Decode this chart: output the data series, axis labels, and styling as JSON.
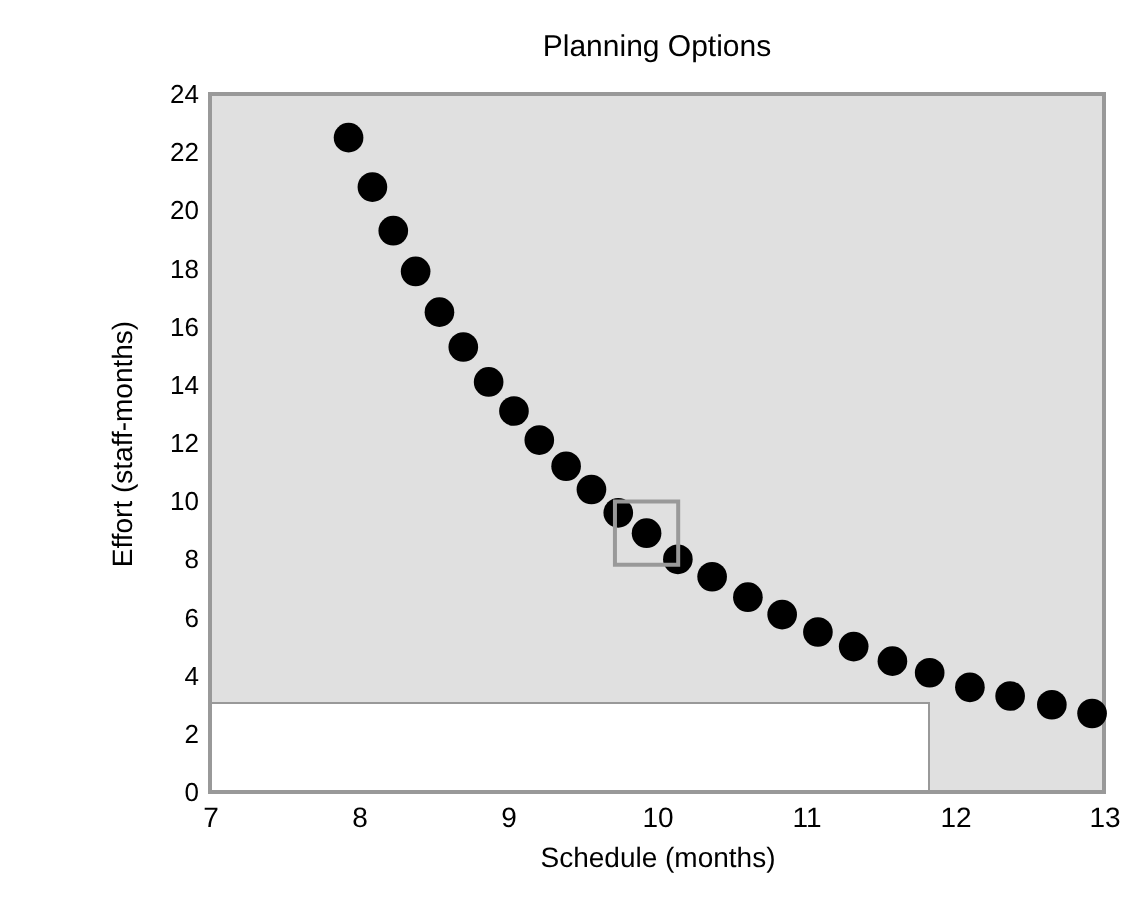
{
  "chart_data": {
    "type": "scatter",
    "title": "Planning Options",
    "xlabel": "Schedule (months)",
    "ylabel": "Effort (staff-months)",
    "xlim": [
      7,
      13
    ],
    "xticks": [
      7,
      8,
      9,
      10,
      11,
      12,
      13
    ],
    "ylim": [
      0,
      24
    ],
    "yticks": [
      0,
      2,
      4,
      6,
      8,
      10,
      12,
      14,
      16,
      18,
      20,
      22,
      24
    ],
    "grid": false,
    "marker": "circle",
    "series": [
      {
        "color": "#000000",
        "x": [
          7.93,
          8.09,
          8.23,
          8.38,
          8.54,
          8.7,
          8.87,
          9.04,
          9.21,
          9.39,
          9.56,
          9.74,
          9.93,
          10.14,
          10.37,
          10.61,
          10.84,
          11.08,
          11.32,
          11.58,
          11.83,
          12.1,
          12.37,
          12.65,
          12.92
        ],
        "values": [
          22.5,
          20.8,
          19.3,
          17.9,
          16.5,
          15.3,
          14.1,
          13.1,
          12.1,
          11.2,
          10.4,
          9.6,
          8.9,
          8.0,
          7.4,
          6.7,
          6.1,
          5.5,
          5.0,
          4.5,
          4.1,
          3.6,
          3.3,
          3.0,
          2.7
        ]
      },
      {
        "color": "#999999",
        "marker": "square",
        "x": [
          9.93
        ],
        "values": [
          8.9
        ]
      }
    ]
  }
}
